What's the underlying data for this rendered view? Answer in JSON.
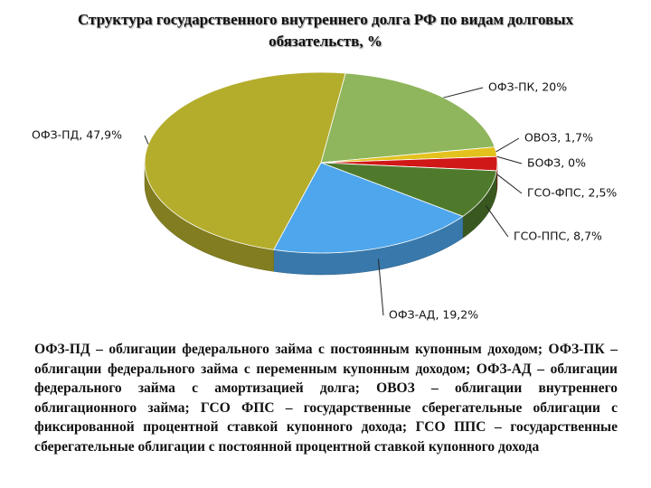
{
  "chart_data": {
    "type": "pie",
    "title": "Структура государственного внутреннего долга РФ по видам долговых обязательств, %",
    "values": [
      20,
      1.7,
      0,
      2.5,
      8.7,
      19.2,
      47.9
    ],
    "value_labels": [
      "ОФЗ-ПК, 20%",
      "ОВОЗ, 1,7%",
      "БОФЗ, 0%",
      "ГСО-ФПС, 2,5%",
      "ГСО-ППС, 8,7%",
      "ОФЗ-АД, 19,2%",
      "ОФЗ-ПД, 47,9%"
    ],
    "colors": [
      "#8fb65c",
      "#e3c21e",
      "#ffffff",
      "#d01818",
      "#4f7a2c",
      "#4ea6ec",
      "#b4ad2c"
    ]
  },
  "note": "ОФЗ-ПД – облигации федерального займа с постоянным купонным доходом; ОФЗ-ПК – облигации федерального займа с переменным купонным доходом; ОФЗ-АД – облигации федерального займа с амортизацией долга; ОВОЗ – облигации внутреннего облигационного займа; ГСО ФПС – государственные сберегательные облигации с фиксированной процентной ставкой купонного дохода; ГСО ППС – государственные сберегательные облигации с постоянной процентной ставкой купонного дохода"
}
